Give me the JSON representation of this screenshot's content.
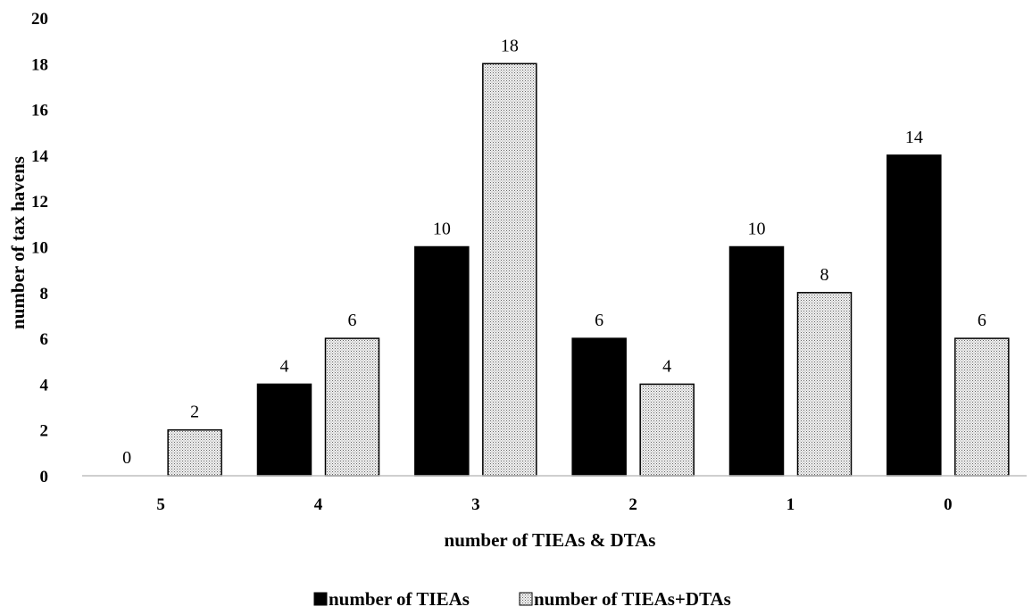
{
  "chart_data": {
    "type": "bar",
    "categories": [
      "5",
      "4",
      "3",
      "2",
      "1",
      "0"
    ],
    "series": [
      {
        "name": "number of TIEAs",
        "values": [
          0,
          4,
          10,
          6,
          10,
          14
        ],
        "color": "#000000",
        "pattern": "solid"
      },
      {
        "name": "number of TIEAs+DTAs",
        "values": [
          2,
          6,
          18,
          4,
          8,
          6
        ],
        "color": "#d9d9d9",
        "pattern": "dotted"
      }
    ],
    "xlabel": "number of TIEAs & DTAs",
    "ylabel": "number of tax havens",
    "ylim": [
      0,
      20
    ],
    "yticks": [
      0,
      2,
      4,
      6,
      8,
      10,
      12,
      14,
      16,
      18,
      20
    ],
    "grid": false,
    "legend_position": "bottom-center"
  }
}
